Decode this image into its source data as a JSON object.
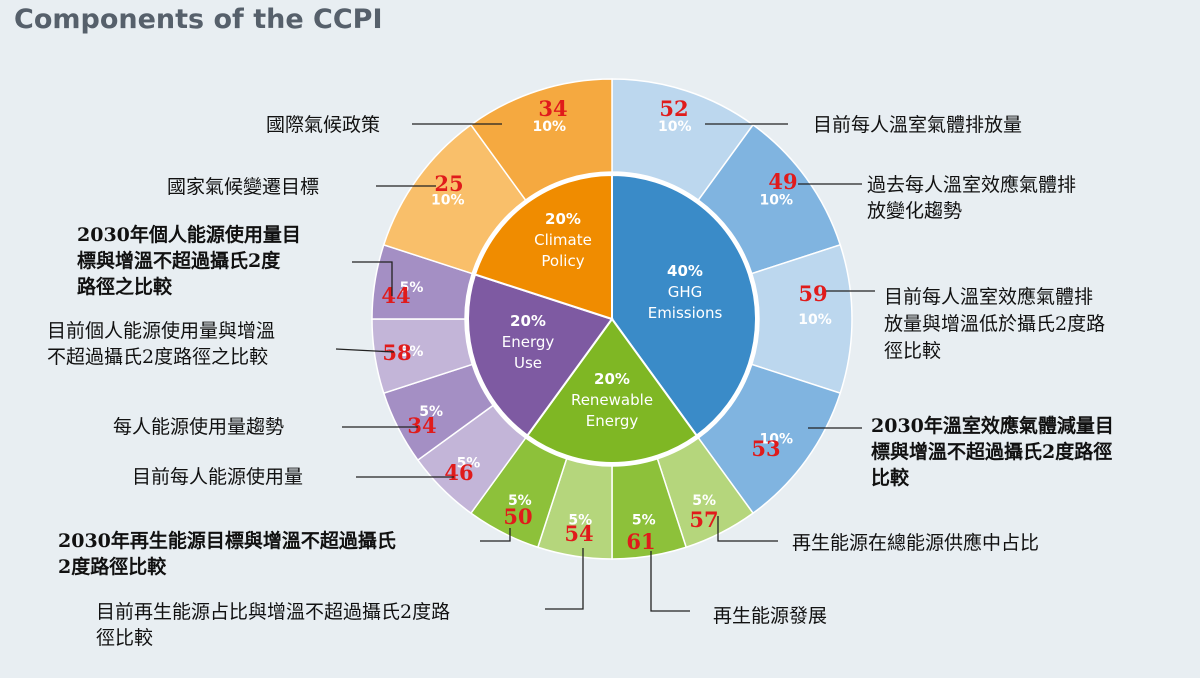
{
  "title": "Components of the CCPI",
  "chart_data": {
    "type": "pie",
    "categories": [
      {
        "key": "ghg",
        "label_lines": [
          "40%",
          "GHG",
          "Emissions"
        ],
        "share": 40,
        "color": "#3a8bc8"
      },
      {
        "key": "renewable",
        "label_lines": [
          "20%",
          "Renewable",
          "Energy"
        ],
        "share": 20,
        "color": "#7fb724"
      },
      {
        "key": "energy_use",
        "label_lines": [
          "20%",
          "Energy",
          "Use"
        ],
        "share": 20,
        "color": "#7e5aa2"
      },
      {
        "key": "climate_policy",
        "label_lines": [
          "20%",
          "Climate",
          "Policy"
        ],
        "share": 20,
        "color": "#f08c00"
      }
    ],
    "indicators": [
      {
        "category": "ghg",
        "weight": 10,
        "weight_label": "10%",
        "score": 52,
        "color": "#bcd7ee",
        "label_lines": [
          "目前每人溫室氣體排放量"
        ]
      },
      {
        "category": "ghg",
        "weight": 10,
        "weight_label": "10%",
        "score": 49,
        "color": "#80b4e0",
        "label_lines": [
          "過去每人溫室效應氣體排",
          "放變化趨勢"
        ]
      },
      {
        "category": "ghg",
        "weight": 10,
        "weight_label": "10%",
        "score": 59,
        "color": "#bcd7ee",
        "label_lines": [
          "目前每人溫室效應氣體排",
          "放量與增溫低於攝氏2度路",
          "徑比較"
        ]
      },
      {
        "category": "ghg",
        "weight": 10,
        "weight_label": "10%",
        "score": 53,
        "color": "#80b4e0",
        "label_lines": [
          "2030年溫室效應氣體減量目",
          "標與增溫不超過攝氏2度路徑",
          "比較"
        ]
      },
      {
        "category": "renewable",
        "weight": 5,
        "weight_label": "5%",
        "score": 57,
        "color": "#b5d67c",
        "label_lines": [
          "再生能源在總能源供應中占比"
        ]
      },
      {
        "category": "renewable",
        "weight": 5,
        "weight_label": "5%",
        "score": 61,
        "color": "#8dc13a",
        "label_lines": [
          "再生能源發展"
        ]
      },
      {
        "category": "renewable",
        "weight": 5,
        "weight_label": "5%",
        "score": 54,
        "color": "#b5d67c",
        "label_lines": [
          "目前再生能源占比與增溫不超過攝氏2度路",
          "徑比較"
        ]
      },
      {
        "category": "renewable",
        "weight": 5,
        "weight_label": "5%",
        "score": 50,
        "color": "#8dc13a",
        "label_lines": [
          "2030年再生能源目標與增溫不超過攝氏",
          "2度路徑比較"
        ]
      },
      {
        "category": "energy_use",
        "weight": 5,
        "weight_label": "5%",
        "score": 46,
        "color": "#c3b5d8",
        "label_lines": [
          "目前每人能源使用量"
        ]
      },
      {
        "category": "energy_use",
        "weight": 5,
        "weight_label": "5%",
        "score": 34,
        "color": "#a48fc4",
        "label_lines": [
          "每人能源使用量趨勢"
        ]
      },
      {
        "category": "energy_use",
        "weight": 5,
        "weight_label": "5%",
        "score": 58,
        "color": "#c3b5d8",
        "label_lines": [
          "目前個人能源使用量與增溫",
          "不超過攝氏2度路徑之比較"
        ]
      },
      {
        "category": "energy_use",
        "weight": 5,
        "weight_label": "5%",
        "score": 44,
        "color": "#a48fc4",
        "label_lines": [
          "2030年個人能源使用量目",
          "標與增溫不超過攝氏2度",
          "路徑之比較"
        ]
      },
      {
        "category": "climate_policy",
        "weight": 10,
        "weight_label": "10%",
        "score": 25,
        "color": "#f9bf6a",
        "label_lines": [
          "國家氣候變遷目標"
        ]
      },
      {
        "category": "climate_policy",
        "weight": 10,
        "weight_label": "10%",
        "score": 34,
        "color": "#f5a940",
        "label_lines": [
          "國際氣候政策"
        ]
      }
    ]
  }
}
